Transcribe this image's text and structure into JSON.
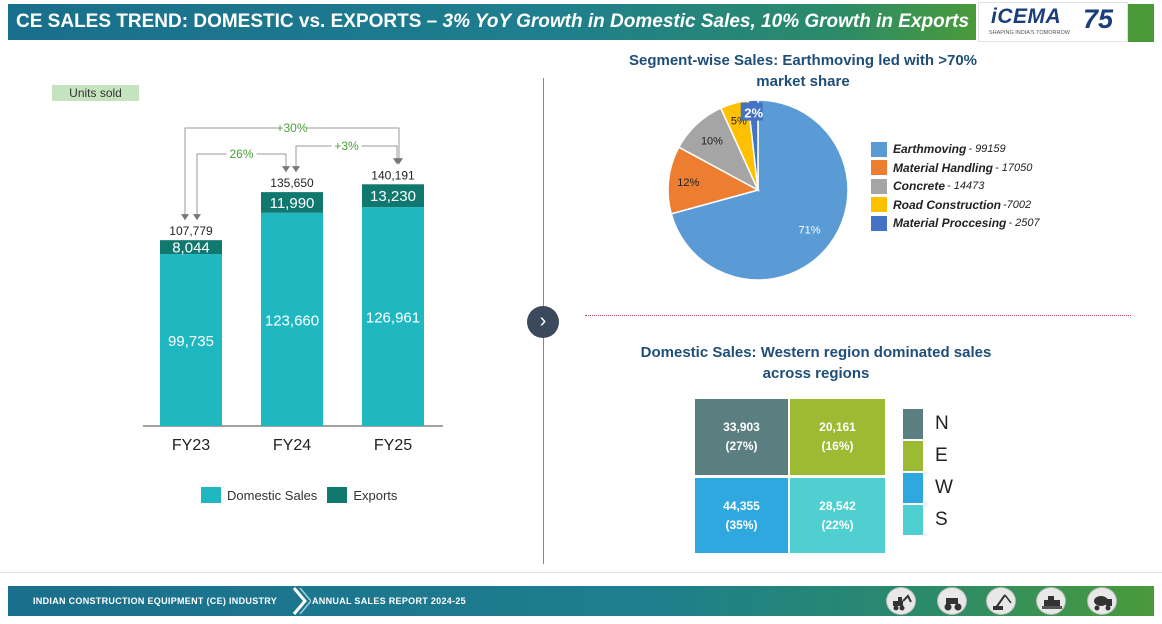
{
  "header": {
    "title_main": "CE SALES TREND: DOMESTIC vs. EXPORTS – ",
    "title_italic": "3% YoY Growth in Domestic Sales, 10% Growth in Exports",
    "logo_name": "iCEMA",
    "logo_tagline": "SHAPING INDIA'S TOMORROW",
    "logo_years": "75"
  },
  "units_badge": "Units sold",
  "chart_data": [
    {
      "type": "bar",
      "stacked": true,
      "categories": [
        "FY23",
        "FY24",
        "FY25"
      ],
      "series": [
        {
          "name": "Domestic Sales",
          "values": [
            99735,
            123660,
            126961
          ],
          "labels": [
            "99,735",
            "123,660",
            "126,961"
          ],
          "color": "#20b8c0"
        },
        {
          "name": "Exports",
          "values": [
            8044,
            11990,
            13230
          ],
          "labels": [
            "8,044",
            "11,990",
            "13,230"
          ],
          "color": "#10786e"
        }
      ],
      "totals": [
        107779,
        135650,
        140191
      ],
      "total_labels": [
        "107,779",
        "135,650",
        "140,191"
      ],
      "annotations": [
        {
          "text": "+30%",
          "from": "FY23",
          "to": "FY25"
        },
        {
          "text": "26%",
          "from": "FY23",
          "to": "FY24"
        },
        {
          "text": "+3%",
          "from": "FY24",
          "to": "FY25"
        }
      ],
      "ylim": [
        0,
        145000
      ],
      "legend": "bottom"
    },
    {
      "type": "pie",
      "title": "Segment-wise Sales: Earthmoving led with >70% market share",
      "slices": [
        {
          "name": "Earthmoving",
          "value": 99159,
          "label": "71%",
          "color": "#5b9bd5"
        },
        {
          "name": "Material Handling",
          "value": 17050,
          "label": "12%",
          "color": "#ed7d31"
        },
        {
          "name": "Concrete",
          "value": 14473,
          "label": "10%",
          "color": "#a5a5a5"
        },
        {
          "name": "Road Construction",
          "value": 7002,
          "label": "5%",
          "color": "#ffc000"
        },
        {
          "name": "Material Proccesing",
          "value": 2507,
          "label": "2%",
          "color": "#4472c4"
        }
      ],
      "legend_values": [
        "- 99159",
        "- 17050",
        "- 14473",
        "-7002",
        "- 2507"
      ],
      "legend": "right"
    },
    {
      "type": "heatmap",
      "title": "Domestic Sales: Western region dominated sales across regions",
      "cells": [
        {
          "region": "N",
          "value": 33903,
          "value_label": "33,903",
          "share_label": "(27%)",
          "color": "#5b7f80"
        },
        {
          "region": "E",
          "value": 20161,
          "value_label": "20,161",
          "share_label": "(16%)",
          "color": "#9cbb32"
        },
        {
          "region": "W",
          "value": 44355,
          "value_label": "44,355",
          "share_label": "(35%)",
          "color": "#2fa8e0"
        },
        {
          "region": "S",
          "value": 28542,
          "value_label": "28,542",
          "share_label": "(22%)",
          "color": "#4fcfcf"
        }
      ],
      "legend": "right"
    }
  ],
  "footer": {
    "left": "INDIAN CONSTRUCTION EQUIPMENT (CE) INDUSTRY",
    "right": "ANNUAL SALES REPORT 2024-25",
    "icons": [
      "backhoe-icon",
      "tractor-icon",
      "crane-icon",
      "paver-icon",
      "mixer-icon"
    ]
  }
}
